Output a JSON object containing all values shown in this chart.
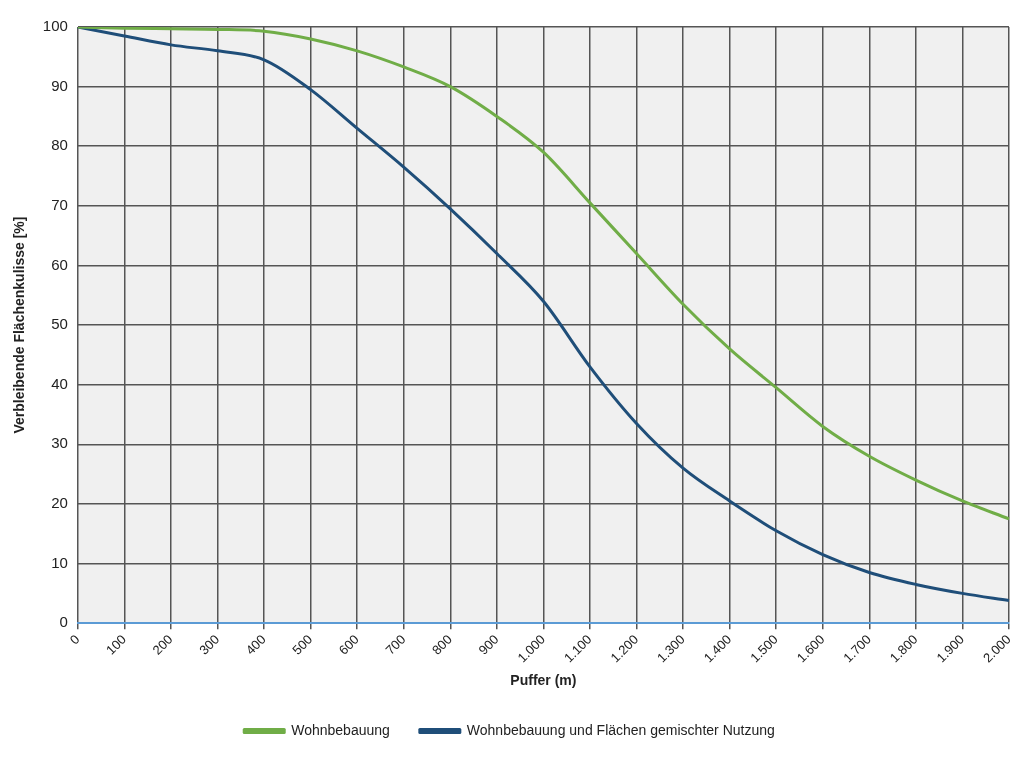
{
  "chart_data": {
    "type": "line",
    "xlabel": "Puffer (m)",
    "ylabel": "Verbleibende Flächenkulisse [%]",
    "categories": [
      "0",
      "100",
      "200",
      "300",
      "400",
      "500",
      "600",
      "700",
      "800",
      "900",
      "1.000",
      "1.100",
      "1.200",
      "1.300",
      "1.400",
      "1.500",
      "1.600",
      "1.700",
      "1.800",
      "1.900",
      "2.000"
    ],
    "series": [
      {
        "name": "Wohnbebauung",
        "color": "#70ad47",
        "values": [
          100,
          99.8,
          99.7,
          99.6,
          99.3,
          98,
          96,
          93.3,
          90,
          85,
          79,
          70.5,
          62,
          53.5,
          46,
          39.5,
          33,
          28,
          24,
          20.5,
          17.5
        ]
      },
      {
        "name": "Wohnbebauung und Flächen gemischter Nutzung",
        "color": "#1f4e79",
        "values": [
          100,
          98.5,
          97,
          96,
          94.5,
          89.5,
          83,
          76.5,
          69.5,
          62,
          54,
          43,
          33.5,
          26,
          20.5,
          15.5,
          11.5,
          8.5,
          6.5,
          5,
          3.8
        ]
      }
    ],
    "ylim": [
      0,
      100
    ],
    "yticks": [
      0,
      10,
      20,
      30,
      40,
      50,
      60,
      70,
      80,
      90,
      100
    ],
    "grid": true,
    "legend": "bottom",
    "marker": "none",
    "line_style": "solid"
  }
}
